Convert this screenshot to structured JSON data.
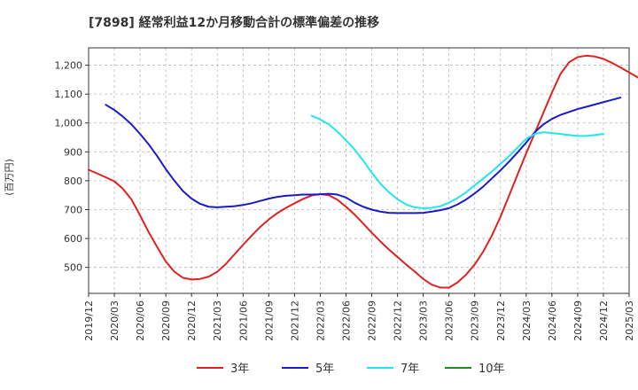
{
  "chart_data": {
    "type": "line",
    "title": "[7898]  経常利益12か月移動合計の標準偏差の推移",
    "ylabel": "(百万円)",
    "ylim": [
      410,
      1260
    ],
    "yticks": [
      500,
      600,
      700,
      800,
      900,
      1000,
      1100,
      1200
    ],
    "ytick_labels": [
      "500",
      "600",
      "700",
      "800",
      "900",
      "1,000",
      "1,100",
      "1,200"
    ],
    "xlim": [
      "2019-12",
      "2025-03"
    ],
    "xtick_labels": [
      "2019/12",
      "2020/03",
      "2020/06",
      "2020/09",
      "2020/12",
      "2021/03",
      "2021/06",
      "2021/09",
      "2021/12",
      "2022/03",
      "2022/06",
      "2022/09",
      "2022/12",
      "2023/03",
      "2023/06",
      "2023/09",
      "2023/12",
      "2024/03",
      "2024/06",
      "2024/09",
      "2024/12",
      "2025/03"
    ],
    "grid": true,
    "legend_position": "bottom",
    "series": [
      {
        "name": "3年",
        "color": "#dd2222",
        "start": "2019-12",
        "values": [
          838,
          825,
          812,
          798,
          772,
          735,
          680,
          622,
          570,
          520,
          485,
          464,
          458,
          460,
          468,
          485,
          512,
          545,
          578,
          610,
          640,
          666,
          688,
          706,
          722,
          737,
          749,
          754,
          750,
          734,
          710,
          683,
          652,
          620,
          590,
          562,
          536,
          510,
          486,
          460,
          440,
          430,
          430,
          448,
          475,
          510,
          555,
          610,
          675,
          748,
          822,
          895,
          965,
          1035,
          1105,
          1170,
          1210,
          1228,
          1233,
          1230,
          1222,
          1208,
          1192,
          1175,
          1158,
          1140
        ]
      },
      {
        "name": "5年",
        "color": "#1a1ac8",
        "start": "2020-02",
        "values": [
          1063,
          1045,
          1022,
          995,
          962,
          926,
          885,
          840,
          800,
          764,
          738,
          720,
          710,
          708,
          710,
          712,
          716,
          722,
          730,
          738,
          744,
          748,
          750,
          752,
          752,
          753,
          755,
          752,
          742,
          724,
          710,
          700,
          693,
          689,
          688,
          688,
          688,
          689,
          693,
          698,
          705,
          718,
          735,
          756,
          780,
          808,
          836,
          866,
          898,
          932,
          968,
          995,
          1014,
          1028,
          1038,
          1048,
          1056,
          1064,
          1072,
          1080,
          1088
        ]
      },
      {
        "name": "7年",
        "color": "#22e5f0",
        "start": "2022-02",
        "values": [
          1025,
          1012,
          995,
          970,
          940,
          908,
          870,
          828,
          790,
          760,
          736,
          718,
          708,
          705,
          706,
          712,
          724,
          740,
          760,
          784,
          808,
          832,
          858,
          885,
          915,
          945,
          962,
          968,
          965,
          962,
          958,
          955,
          955,
          958,
          962
        ]
      },
      {
        "name": "10年",
        "color": "#228822",
        "start": "2025-03",
        "values": []
      }
    ]
  }
}
